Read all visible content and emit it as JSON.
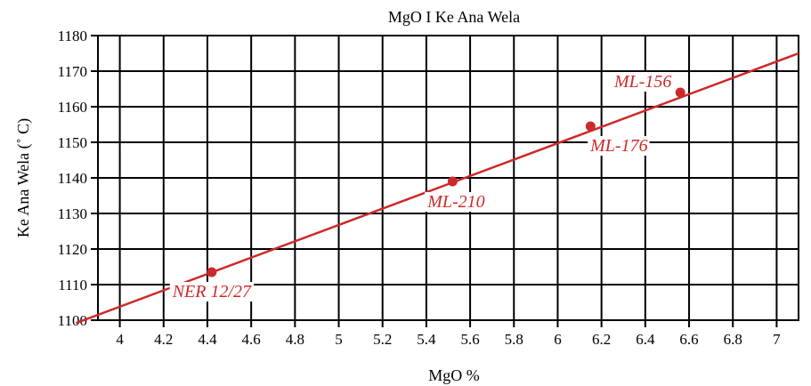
{
  "chart_data": {
    "type": "scatter",
    "title": "MgO I Ke Ana Wela",
    "xlabel": "MgO %",
    "ylabel": "Ke Ana Wela (˚ C)",
    "xlim": [
      3.9,
      7.1
    ],
    "ylim": [
      1100,
      1180
    ],
    "x_ticks": [
      4,
      4.2,
      4.4,
      4.6,
      4.8,
      5,
      5.2,
      5.4,
      5.6,
      5.8,
      6,
      6.2,
      6.4,
      6.6,
      6.8,
      7
    ],
    "x_tick_labels": [
      "4",
      "4.2",
      "4.4",
      "4.6",
      "4.8",
      "5",
      "5.2",
      "5.4",
      "5.6",
      "5.8",
      "6",
      "6.2",
      "6.4",
      "6.6",
      "6.8",
      "7"
    ],
    "y_ticks": [
      1100,
      1110,
      1120,
      1130,
      1140,
      1150,
      1160,
      1170,
      1180
    ],
    "y_tick_labels": [
      "1100",
      "1110",
      "1120",
      "1130",
      "1140",
      "1150",
      "1160",
      "1170",
      "1180"
    ],
    "grid": true,
    "points": [
      {
        "label": "NER 12/27",
        "x": 4.42,
        "y": 1113.5
      },
      {
        "label": "ML-210",
        "x": 5.52,
        "y": 1139
      },
      {
        "label": "ML-176",
        "x": 6.15,
        "y": 1154.5
      },
      {
        "label": "ML-156",
        "x": 6.56,
        "y": 1164
      }
    ],
    "trendline": {
      "x": [
        3.9,
        7.1
      ],
      "y": [
        1101.5,
        1175
      ]
    },
    "colors": {
      "series": "#cc2a2a",
      "grid": "#000000"
    }
  }
}
